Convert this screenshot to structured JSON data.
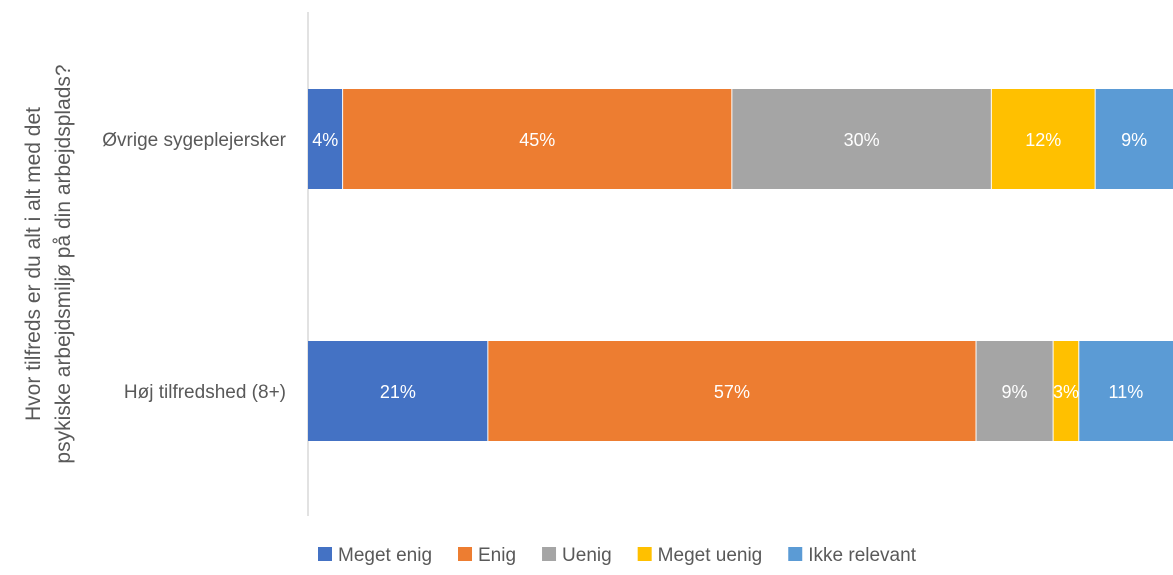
{
  "chart_data": {
    "type": "bar",
    "orientation": "horizontal",
    "stacked": true,
    "percent": true,
    "ylabel_lines": [
      "Hvor tilfreds er du alt i alt med det",
      "psykiske arbejdsmiljø på din arbejdsplads?"
    ],
    "categories": [
      "Øvrige sygeplejersker",
      "Høj tilfredshed (8+)"
    ],
    "series": [
      {
        "name": "Meget enig",
        "color": "#4472C4",
        "values": [
          4,
          21
        ],
        "labels": [
          "4%",
          "21%"
        ]
      },
      {
        "name": "Enig",
        "color": "#ED7D31",
        "values": [
          45,
          57
        ],
        "labels": [
          "45%",
          "57%"
        ]
      },
      {
        "name": "Uenig",
        "color": "#A5A5A5",
        "values": [
          30,
          9
        ],
        "labels": [
          "30%",
          "9%"
        ]
      },
      {
        "name": "Meget uenig",
        "color": "#FFC000",
        "values": [
          12,
          3
        ],
        "labels": [
          "12%",
          "3%"
        ]
      },
      {
        "name": "Ikke relevant",
        "color": "#5B9BD5",
        "values": [
          9,
          11
        ],
        "labels": [
          "9%",
          "11%"
        ]
      }
    ],
    "xlim": [
      0,
      100
    ],
    "grid": false,
    "legend_position": "bottom"
  }
}
